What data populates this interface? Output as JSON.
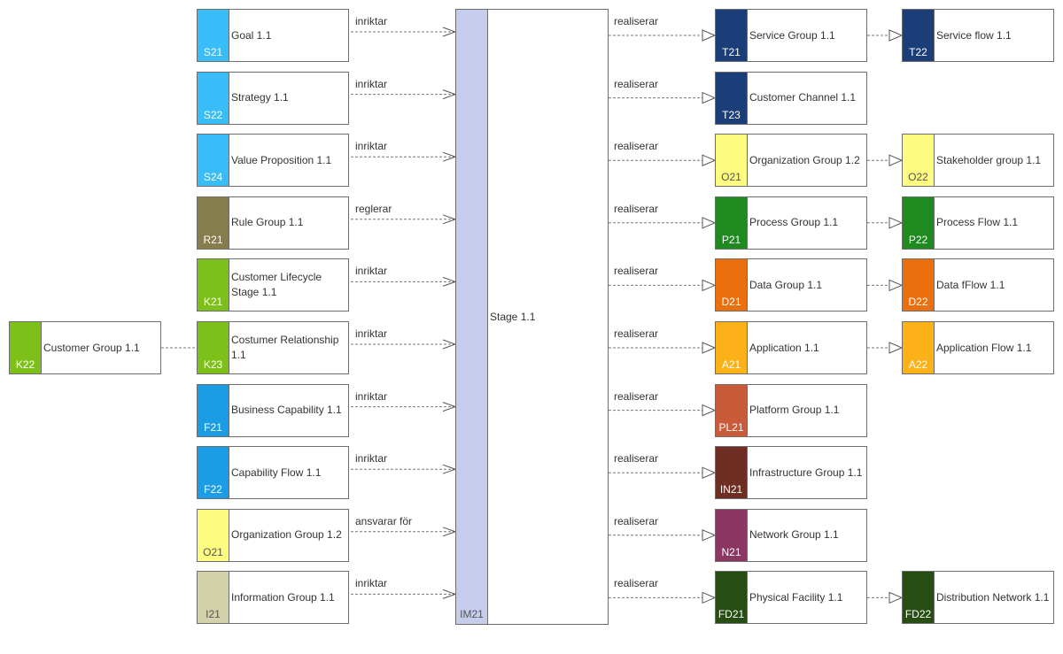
{
  "stage": {
    "code": "IM21",
    "name": "Stage 1.1",
    "color": "#c6cceb"
  },
  "left_nodes": [
    {
      "code": "S21",
      "name": "Goal 1.1",
      "color": "#38bdf8",
      "edge": "inriktar"
    },
    {
      "code": "S22",
      "name": "Strategy 1.1",
      "color": "#38bdf8",
      "edge": "inriktar"
    },
    {
      "code": "S24",
      "name": "Value Proposition 1.1",
      "color": "#38bdf8",
      "edge": "inriktar"
    },
    {
      "code": "R21",
      "name": "Rule Group 1.1",
      "color": "#867d4c",
      "edge": "reglerar"
    },
    {
      "code": "K21",
      "name": "Customer Lifecycle Stage 1.1",
      "color": "#7ec01a",
      "edge": "inriktar"
    },
    {
      "code": "K23",
      "name": "Costumer Relationship 1.1",
      "color": "#7ec01a",
      "edge": "inriktar"
    },
    {
      "code": "F21",
      "name": "Business Capability 1.1",
      "color": "#1a9de5",
      "edge": "inriktar"
    },
    {
      "code": "F22",
      "name": "Capability Flow 1.1",
      "color": "#1a9de5",
      "edge": "inriktar"
    },
    {
      "code": "O21",
      "name": "Organization Group 1.2",
      "color": "#fdfb80",
      "edge": "ansvarar för"
    },
    {
      "code": "I21",
      "name": "Information Group 1.1",
      "color": "#d3d1aa",
      "edge": "inriktar"
    }
  ],
  "outer_left_node": {
    "code": "K22",
    "name": "Customer Group 1.1",
    "color": "#7ec01a"
  },
  "right_nodes": [
    {
      "code": "T21",
      "name": "Service Group 1.1",
      "color": "#1c3e78",
      "edge": "realiserar",
      "next": {
        "code": "T22",
        "name": "Service flow 1.1",
        "color": "#1c3e78"
      }
    },
    {
      "code": "T23",
      "name": "Customer Channel 1.1",
      "color": "#1c3e78",
      "edge": "realiserar",
      "next": null
    },
    {
      "code": "O21",
      "name": "Organization Group 1.2",
      "color": "#fdfb80",
      "edge": "realiserar",
      "next": {
        "code": "O22",
        "name": "Stakeholder group 1.1",
        "color": "#fdfb80"
      }
    },
    {
      "code": "P21",
      "name": "Process Group 1.1",
      "color": "#1f8a1f",
      "edge": "realiserar",
      "next": {
        "code": "P22",
        "name": "Process Flow 1.1",
        "color": "#1f8a1f"
      }
    },
    {
      "code": "D21",
      "name": "Data Group 1.1",
      "color": "#eb6f0c",
      "edge": "realiserar",
      "next": {
        "code": "D22",
        "name": "Data fFlow 1.1",
        "color": "#eb6f0c"
      }
    },
    {
      "code": "A21",
      "name": "Application 1.1",
      "color": "#fbb117",
      "edge": "realiserar",
      "next": {
        "code": "A22",
        "name": "Application Flow 1.1",
        "color": "#fbb117"
      }
    },
    {
      "code": "PL21",
      "name": "Platform Group 1.1",
      "color": "#c95a3a",
      "edge": "realiserar",
      "next": null
    },
    {
      "code": "IN21",
      "name": "Infrastructure Group 1.1",
      "color": "#6f2e24",
      "edge": "realiserar",
      "next": null
    },
    {
      "code": "N21",
      "name": "Network Group 1.1",
      "color": "#8b3762",
      "edge": "realiserar",
      "next": null
    },
    {
      "code": "FD21",
      "name": "Physical Facility 1.1",
      "color": "#264d12",
      "edge": "realiserar",
      "next": {
        "code": "FD22",
        "name": "Distribution Network 1.1",
        "color": "#264d12"
      }
    }
  ]
}
